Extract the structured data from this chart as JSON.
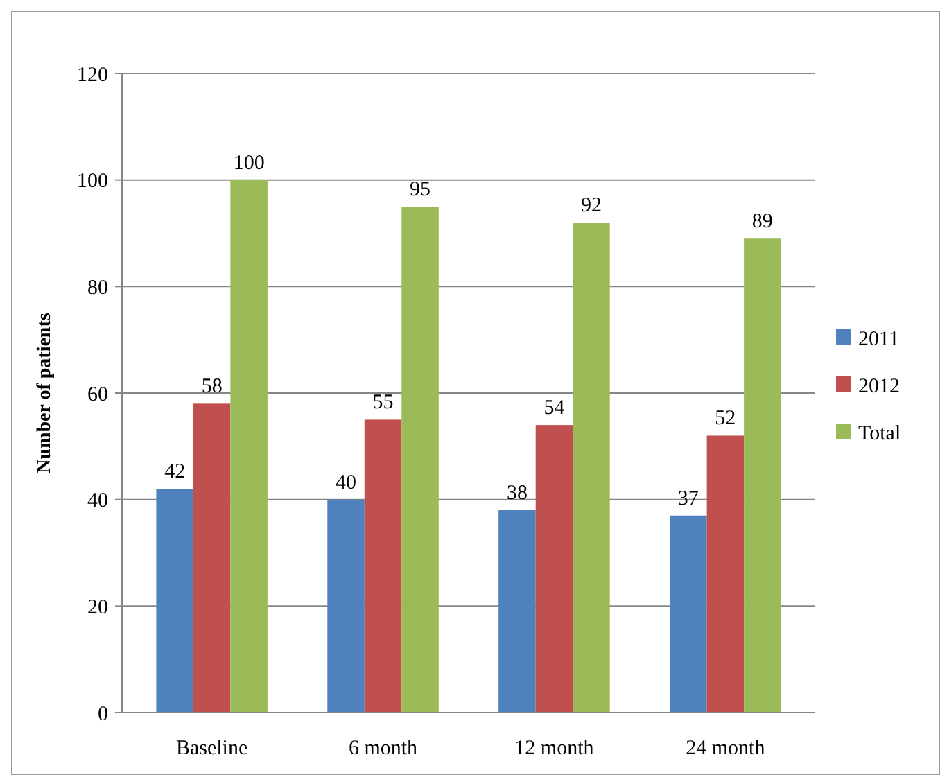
{
  "chart_data": {
    "type": "bar",
    "ylabel": "Number of patients",
    "categories": [
      "Baseline",
      "6 month",
      "12 month",
      "24 month"
    ],
    "series": [
      {
        "name": "2011",
        "color": "#4f81bd",
        "values": [
          42,
          40,
          38,
          37
        ]
      },
      {
        "name": "2012",
        "color": "#c0504d",
        "values": [
          58,
          55,
          54,
          52
        ]
      },
      {
        "name": "Total",
        "color": "#9bbb59",
        "values": [
          100,
          95,
          92,
          89
        ]
      }
    ],
    "ylim": [
      0,
      120
    ],
    "yticks": [
      0,
      20,
      40,
      60,
      80,
      100,
      120
    ],
    "grid": "y",
    "legend": "right",
    "data_labels": true
  }
}
